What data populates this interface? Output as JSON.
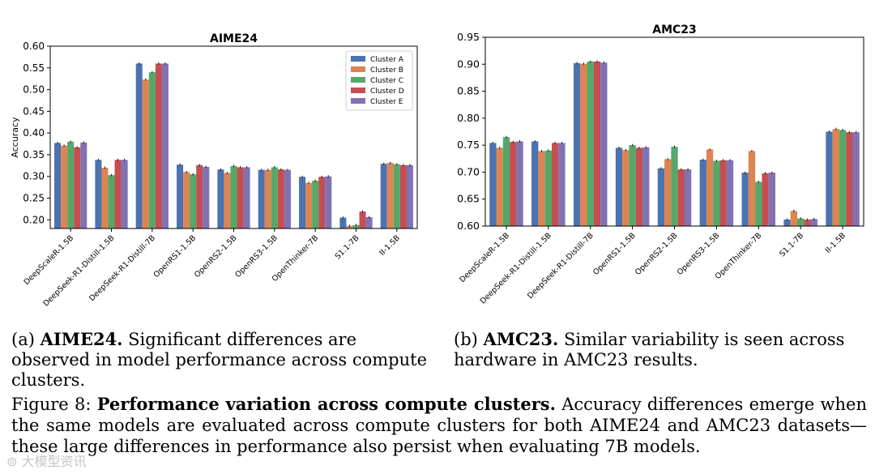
{
  "chart_data": [
    {
      "type": "bar",
      "title": "AIME24",
      "ylabel": "Accuracy",
      "xlabel": "",
      "ylim": [
        0.18,
        0.6
      ],
      "yticks": [
        "0.20",
        "0.25",
        "0.30",
        "0.35",
        "0.40",
        "0.45",
        "0.50",
        "0.55",
        "0.60"
      ],
      "legend_position": "top-right",
      "categories": [
        "DeepScaleR-1.5B",
        "DeepSeek-R1-Distill-1.5B",
        "DeepSeek-R1-Distill-7B",
        "OpenRS1-1.5B",
        "OpenRS2-1.5B",
        "OpenRS3-1.5B",
        "OpenThinker-7B",
        "S1.1-7B",
        "II-1.5B"
      ],
      "series": [
        {
          "name": "Cluster A",
          "color": "#4c72b0",
          "values": [
            0.377,
            0.338,
            0.56,
            0.327,
            0.316,
            0.315,
            0.299,
            0.205,
            0.329
          ]
        },
        {
          "name": "Cluster B",
          "color": "#dd8452",
          "values": [
            0.371,
            0.32,
            0.523,
            0.31,
            0.308,
            0.315,
            0.285,
            0.186,
            0.331
          ]
        },
        {
          "name": "Cluster C",
          "color": "#55a868",
          "values": [
            0.38,
            0.303,
            0.54,
            0.305,
            0.324,
            0.321,
            0.29,
            0.188,
            0.328
          ]
        },
        {
          "name": "Cluster D",
          "color": "#c44e52",
          "values": [
            0.367,
            0.338,
            0.56,
            0.326,
            0.321,
            0.316,
            0.299,
            0.219,
            0.326
          ]
        },
        {
          "name": "Cluster E",
          "color": "#8172b3",
          "values": [
            0.378,
            0.338,
            0.56,
            0.322,
            0.321,
            0.315,
            0.3,
            0.206,
            0.326
          ]
        }
      ]
    },
    {
      "type": "bar",
      "title": "AMC23",
      "ylabel": "",
      "xlabel": "",
      "ylim": [
        0.6,
        0.95
      ],
      "yticks": [
        "0.60",
        "0.65",
        "0.70",
        "0.75",
        "0.80",
        "0.85",
        "0.90",
        "0.95"
      ],
      "legend_position": "none",
      "categories": [
        "DeepScaleR-1.5B",
        "DeepSeek-R1-Distill-1.5B",
        "DeepSeek-R1-Distill-7B",
        "OpenRS1-1.5B",
        "OpenRS2-1.5B",
        "OpenRS3-1.5B",
        "OpenThinker-7B",
        "S1.1-7B",
        "II-1.5B"
      ],
      "series": [
        {
          "name": "Cluster A",
          "color": "#4c72b0",
          "values": [
            0.754,
            0.757,
            0.902,
            0.745,
            0.707,
            0.723,
            0.699,
            0.612,
            0.775
          ]
        },
        {
          "name": "Cluster B",
          "color": "#dd8452",
          "values": [
            0.745,
            0.739,
            0.901,
            0.741,
            0.724,
            0.742,
            0.739,
            0.628,
            0.78
          ]
        },
        {
          "name": "Cluster C",
          "color": "#55a868",
          "values": [
            0.765,
            0.74,
            0.905,
            0.75,
            0.747,
            0.721,
            0.682,
            0.614,
            0.778
          ]
        },
        {
          "name": "Cluster D",
          "color": "#c44e52",
          "values": [
            0.756,
            0.754,
            0.905,
            0.745,
            0.705,
            0.722,
            0.698,
            0.612,
            0.774
          ]
        },
        {
          "name": "Cluster E",
          "color": "#8172b3",
          "values": [
            0.757,
            0.754,
            0.903,
            0.746,
            0.705,
            0.722,
            0.699,
            0.613,
            0.774
          ]
        }
      ]
    }
  ],
  "captions": {
    "a_prefix": "(a) ",
    "a_bold": "AIME24.",
    "a_text": " Significant differences are observed in model performance across compute clusters.",
    "b_prefix": "(b) ",
    "b_bold": "AMC23.",
    "b_text": " Similar variability is seen across hardware in AMC23 results.",
    "fig_prefix": "Figure 8: ",
    "fig_bold": "Performance variation across compute clusters.",
    "fig_text": " Accuracy differences emerge when the same models are evaluated across compute clusters for both AIME24 and AMC23 datasets—these large differences in performance also persist when evaluating 7B models."
  },
  "watermark": "大模型资讯"
}
